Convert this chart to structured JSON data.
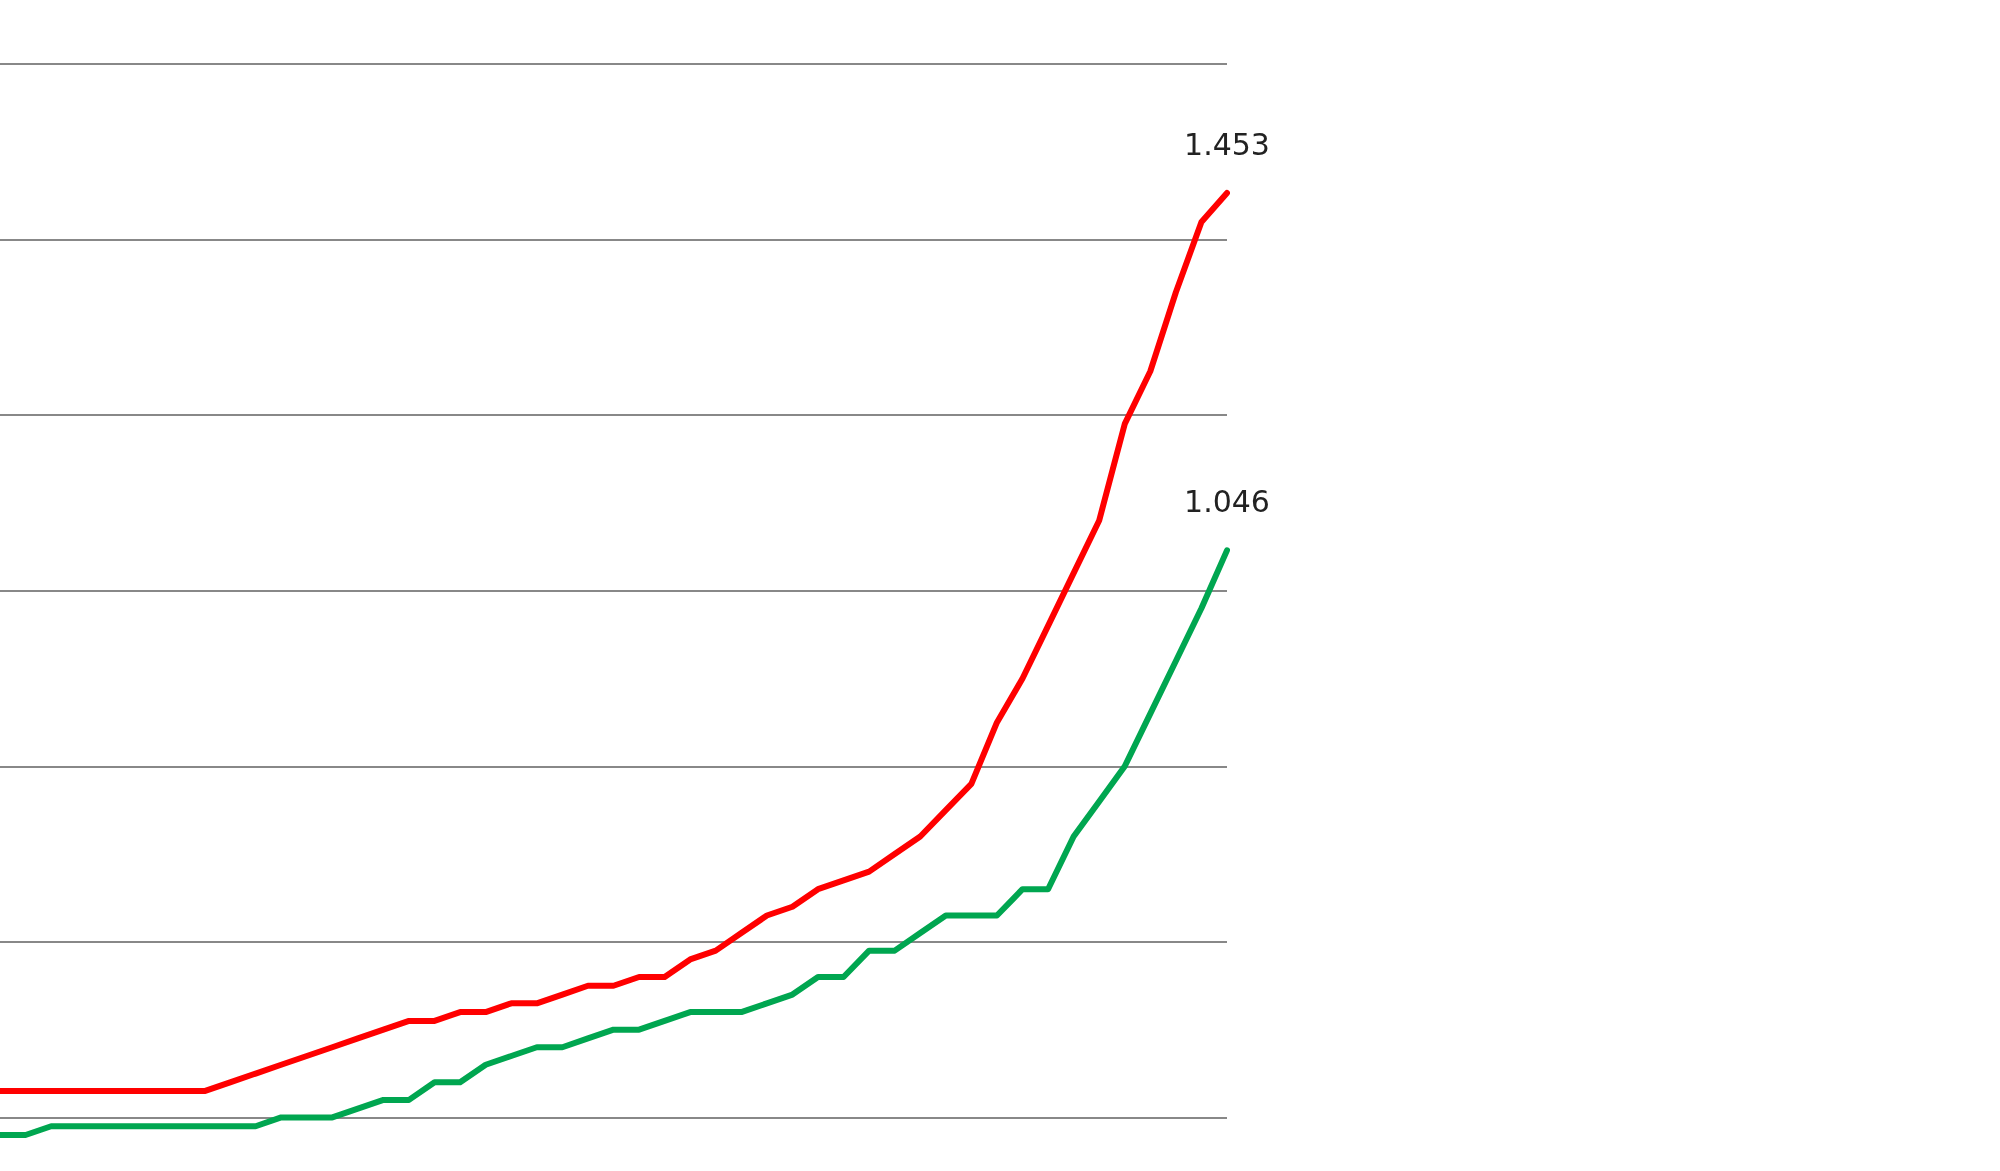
{
  "chart_data": {
    "type": "line",
    "categories": [
      null,
      null,
      null,
      null,
      null,
      null,
      null,
      null,
      null,
      null,
      null,
      null,
      null,
      null,
      null,
      null,
      null,
      null,
      null,
      null,
      null,
      null,
      null,
      null,
      null,
      null,
      null,
      null,
      null,
      null,
      null,
      null,
      null,
      null,
      null,
      null,
      null,
      null,
      null,
      null,
      null,
      null,
      null,
      null,
      null,
      null,
      null,
      null,
      null
    ],
    "series": [
      {
        "color": "#ff0000",
        "values": [
          0.43,
          0.43,
          0.43,
          0.43,
          0.43,
          0.43,
          0.43,
          0.43,
          0.43,
          0.44,
          0.45,
          0.46,
          0.47,
          0.48,
          0.49,
          0.5,
          0.51,
          0.51,
          0.52,
          0.52,
          0.53,
          0.53,
          0.54,
          0.55,
          0.55,
          0.56,
          0.56,
          0.58,
          0.59,
          0.61,
          0.63,
          0.64,
          0.66,
          0.67,
          0.68,
          0.7,
          0.72,
          0.75,
          0.78,
          0.85,
          0.9,
          0.96,
          1.02,
          1.08,
          1.19,
          1.25,
          1.34,
          1.42,
          1.453
        ],
        "value_labels": [
          null,
          null,
          null,
          null,
          null,
          null,
          null,
          null,
          null,
          null,
          null,
          null,
          null,
          null,
          null,
          null,
          null,
          null,
          null,
          null,
          null,
          null,
          null,
          null,
          null,
          null,
          null,
          null,
          null,
          null,
          null,
          null,
          null,
          null,
          null,
          null,
          null,
          null,
          null,
          null,
          null,
          null,
          null,
          null,
          null,
          null,
          null,
          null,
          "1.453"
        ]
      },
      {
        "color": "#00a650",
        "values": [
          0.38,
          0.38,
          0.39,
          0.39,
          0.39,
          0.39,
          0.39,
          0.39,
          0.39,
          0.39,
          0.39,
          0.4,
          0.4,
          0.4,
          0.41,
          0.42,
          0.42,
          0.44,
          0.44,
          0.46,
          0.47,
          0.48,
          0.48,
          0.49,
          0.5,
          0.5,
          0.51,
          0.52,
          0.52,
          0.52,
          0.53,
          0.54,
          0.56,
          0.56,
          0.59,
          0.59,
          0.61,
          0.63,
          0.63,
          0.63,
          0.66,
          0.66,
          0.72,
          0.76,
          0.8,
          0.86,
          0.92,
          0.98,
          1.046
        ],
        "value_labels": [
          null,
          null,
          null,
          null,
          null,
          null,
          null,
          null,
          null,
          null,
          null,
          null,
          null,
          null,
          null,
          null,
          null,
          null,
          null,
          null,
          null,
          null,
          null,
          null,
          null,
          null,
          null,
          null,
          null,
          null,
          null,
          null,
          null,
          null,
          null,
          null,
          null,
          null,
          null,
          null,
          null,
          null,
          null,
          null,
          null,
          null,
          null,
          null,
          "1.046"
        ]
      }
    ],
    "yticks": [
      {
        "value": 0.4,
        "label": null
      },
      {
        "value": 0.6,
        "label": null
      },
      {
        "value": 0.8,
        "label": null
      },
      {
        "value": 1.0,
        "label": null
      },
      {
        "value": 1.2,
        "label": null
      },
      {
        "value": 1.4,
        "label": null
      },
      {
        "value": 1.6,
        "label": null
      }
    ],
    "tick_labels": false,
    "grid": "y",
    "marker": "none",
    "line_style": "solid"
  }
}
